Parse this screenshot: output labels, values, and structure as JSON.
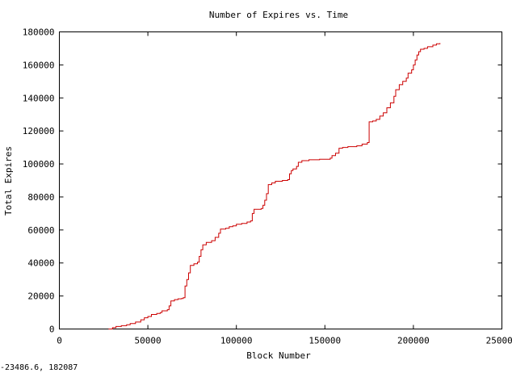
{
  "chart_data": {
    "type": "line",
    "title": "Number of Expires vs. Time",
    "xlabel": "Block Number",
    "ylabel": "Total Expires",
    "xlim": [
      0,
      250000
    ],
    "ylim": [
      0,
      180000
    ],
    "xticks": [
      "0",
      "50000",
      "100000",
      "150000",
      "200000",
      "250000"
    ],
    "yticks": [
      "0",
      "20000",
      "40000",
      "60000",
      "80000",
      "100000",
      "120000",
      "140000",
      "160000",
      "180000"
    ],
    "grid": false,
    "line_color": "#cc0000",
    "series": [
      {
        "points": [
          [
            27800,
            0
          ],
          [
            30000,
            800
          ],
          [
            32000,
            1500
          ],
          [
            35000,
            2000
          ],
          [
            38000,
            2600
          ],
          [
            40000,
            3300
          ],
          [
            43000,
            4200
          ],
          [
            46000,
            5600
          ],
          [
            48000,
            6800
          ],
          [
            50000,
            7600
          ],
          [
            52000,
            8800
          ],
          [
            55000,
            9400
          ],
          [
            57000,
            10000
          ],
          [
            58000,
            11000
          ],
          [
            61000,
            11700
          ],
          [
            62000,
            14000
          ],
          [
            63000,
            17000
          ],
          [
            65000,
            17800
          ],
          [
            67000,
            18300
          ],
          [
            69000,
            18500
          ],
          [
            70000,
            19000
          ],
          [
            71000,
            26000
          ],
          [
            72000,
            30000
          ],
          [
            73000,
            34000
          ],
          [
            74000,
            38500
          ],
          [
            76000,
            39500
          ],
          [
            78000,
            40500
          ],
          [
            79000,
            44000
          ],
          [
            80000,
            48000
          ],
          [
            81000,
            51000
          ],
          [
            83000,
            52500
          ],
          [
            86000,
            53500
          ],
          [
            88000,
            55500
          ],
          [
            90000,
            58000
          ],
          [
            91000,
            60500
          ],
          [
            94000,
            61000
          ],
          [
            96000,
            62000
          ],
          [
            98000,
            62500
          ],
          [
            100000,
            63500
          ],
          [
            103000,
            64000
          ],
          [
            106000,
            64800
          ],
          [
            108000,
            65500
          ],
          [
            109000,
            70000
          ],
          [
            110000,
            72500
          ],
          [
            114000,
            73000
          ],
          [
            115000,
            75000
          ],
          [
            116000,
            78000
          ],
          [
            117000,
            82000
          ],
          [
            118000,
            87500
          ],
          [
            120000,
            88500
          ],
          [
            122000,
            89500
          ],
          [
            126000,
            90000
          ],
          [
            129000,
            90500
          ],
          [
            130000,
            94000
          ],
          [
            131000,
            96000
          ],
          [
            132000,
            97000
          ],
          [
            134000,
            98500
          ],
          [
            135000,
            101000
          ],
          [
            137000,
            102000
          ],
          [
            141000,
            102500
          ],
          [
            147000,
            102800
          ],
          [
            153000,
            103500
          ],
          [
            154000,
            105000
          ],
          [
            156000,
            106500
          ],
          [
            158000,
            109500
          ],
          [
            160000,
            110000
          ],
          [
            163000,
            110500
          ],
          [
            168000,
            111000
          ],
          [
            171000,
            112000
          ],
          [
            174000,
            113000
          ],
          [
            175000,
            125500
          ],
          [
            177000,
            126000
          ],
          [
            179000,
            127000
          ],
          [
            181000,
            129000
          ],
          [
            183000,
            131000
          ],
          [
            185000,
            134000
          ],
          [
            187000,
            137000
          ],
          [
            189000,
            141000
          ],
          [
            190000,
            145000
          ],
          [
            192000,
            148000
          ],
          [
            194000,
            150000
          ],
          [
            196000,
            152000
          ],
          [
            197000,
            155000
          ],
          [
            199000,
            157000
          ],
          [
            200000,
            160000
          ],
          [
            201000,
            163000
          ],
          [
            202000,
            166000
          ],
          [
            203000,
            168000
          ],
          [
            204000,
            169500
          ],
          [
            206000,
            170000
          ],
          [
            208000,
            171000
          ],
          [
            211000,
            172000
          ],
          [
            213000,
            172800
          ],
          [
            215000,
            173200
          ]
        ]
      }
    ]
  },
  "status_readout": "-23486.6,  182087"
}
